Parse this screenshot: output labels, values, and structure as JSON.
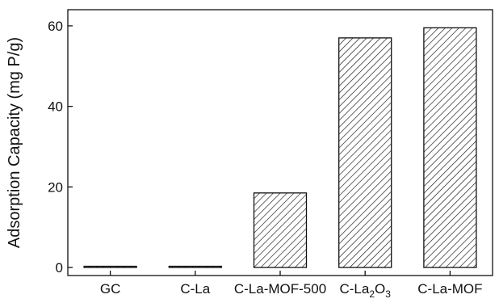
{
  "chart_data": {
    "type": "bar",
    "title": "",
    "xlabel": "",
    "ylabel": "Adsorption Capacity (mg P/g)",
    "categories": [
      {
        "base": "GC"
      },
      {
        "base": "C-La"
      },
      {
        "base": "C-La-MOF-500"
      },
      {
        "base": "C-La",
        "sub1": "2",
        "mid": "O",
        "sub2": "3"
      },
      {
        "base": "C-La-MOF"
      }
    ],
    "values": [
      0.3,
      0.3,
      18.5,
      57,
      59.5
    ],
    "ylim": [
      -2,
      64
    ],
    "yticks": [
      0,
      20,
      40,
      60
    ],
    "grid": false,
    "legend": "none",
    "bar_fill": "hatched-diagonal",
    "colors": {
      "stroke": "#111111",
      "hatch": "#111111",
      "background": "#ffffff"
    }
  }
}
